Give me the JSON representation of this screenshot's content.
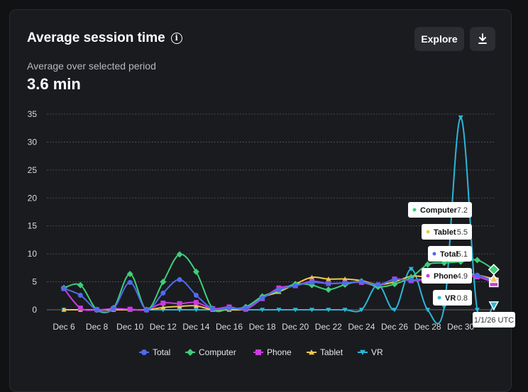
{
  "header": {
    "title": "Average session time",
    "explore_label": "Explore",
    "subtitle": "Average over selected period",
    "metric_value": "3.6 min"
  },
  "icons": {
    "info": "info-icon",
    "download": "download-icon"
  },
  "hover": {
    "date_label": "1/1/26 UTC",
    "values": [
      {
        "name": "Computer",
        "value": "7.2"
      },
      {
        "name": "Tablet",
        "value": "5.5"
      },
      {
        "name": "Total",
        "value": "5.1"
      },
      {
        "name": "Phone",
        "value": "4.9"
      },
      {
        "name": "VR",
        "value": "0.8"
      }
    ]
  },
  "chart_data": {
    "type": "line",
    "ylim": [
      0,
      35
    ],
    "yticks": [
      0,
      5,
      10,
      15,
      20,
      25,
      30,
      35
    ],
    "xticks": [
      "Dec 6",
      "Dec 8",
      "Dec 10",
      "Dec 12",
      "Dec 14",
      "Dec 16",
      "Dec 18",
      "Dec 20",
      "Dec 22",
      "Dec 24",
      "Dec 26",
      "Dec 28",
      "Dec 30"
    ],
    "x": [
      "Dec 6",
      "Dec 7",
      "Dec 8",
      "Dec 9",
      "Dec 10",
      "Dec 11",
      "Dec 12",
      "Dec 13",
      "Dec 14",
      "Dec 15",
      "Dec 16",
      "Dec 17",
      "Dec 18",
      "Dec 19",
      "Dec 20",
      "Dec 21",
      "Dec 22",
      "Dec 23",
      "Dec 24",
      "Dec 25",
      "Dec 26",
      "Dec 27",
      "Dec 28",
      "Dec 29",
      "Dec 30",
      "Dec 31",
      "Jan 1"
    ],
    "grid": true,
    "legend_position": "bottom",
    "series": [
      {
        "name": "Total",
        "color": "#4f6bed",
        "marker": "circle",
        "values": [
          3.8,
          2.6,
          0,
          0.2,
          4.9,
          0,
          3.0,
          5.4,
          2.6,
          0.2,
          0.3,
          0.3,
          2.1,
          3.6,
          4.3,
          4.9,
          4.7,
          4.8,
          5.0,
          4.5,
          5.4,
          5.3,
          5.6,
          5.7,
          5.9,
          6.2,
          5.1
        ]
      },
      {
        "name": "Computer",
        "color": "#3ecf7a",
        "marker": "diamond",
        "values": [
          3.9,
          4.4,
          0,
          0.3,
          6.4,
          0,
          5.0,
          9.9,
          6.8,
          0.2,
          0.2,
          0.5,
          2.4,
          3.4,
          4.6,
          4.4,
          3.6,
          4.5,
          5.1,
          4.1,
          4.6,
          5.8,
          8.1,
          8.4,
          8.6,
          8.9,
          7.2
        ]
      },
      {
        "name": "Phone",
        "color": "#c93ce0",
        "marker": "square",
        "values": [
          3.8,
          0.3,
          0,
          0.2,
          0.1,
          0,
          1.2,
          1.1,
          1.3,
          0.2,
          0.5,
          0.1,
          2.0,
          3.9,
          4.3,
          5.1,
          4.7,
          4.8,
          4.9,
          4.3,
          5.5,
          5.2,
          5.4,
          5.8,
          6.0,
          5.9,
          4.9
        ]
      },
      {
        "name": "Tablet",
        "color": "#f0c84f",
        "marker": "triangle",
        "values": [
          0,
          0,
          0,
          0,
          0,
          0,
          0.4,
          0.6,
          0.7,
          0,
          0,
          0.2,
          2.2,
          3.2,
          4.6,
          5.8,
          5.5,
          5.5,
          5.2,
          4.5,
          5.0,
          6.0,
          5.9,
          6.2,
          6.4,
          6.2,
          5.5
        ]
      },
      {
        "name": "VR",
        "color": "#2bb7d9",
        "marker": "triangle-down",
        "values": [
          0,
          0,
          0,
          0,
          0,
          0,
          0,
          0,
          0,
          0,
          0,
          0,
          0,
          0,
          0,
          0,
          0,
          0,
          0,
          4.5,
          0,
          7.3,
          0,
          0.5,
          34.4,
          0,
          0.8
        ]
      }
    ]
  }
}
